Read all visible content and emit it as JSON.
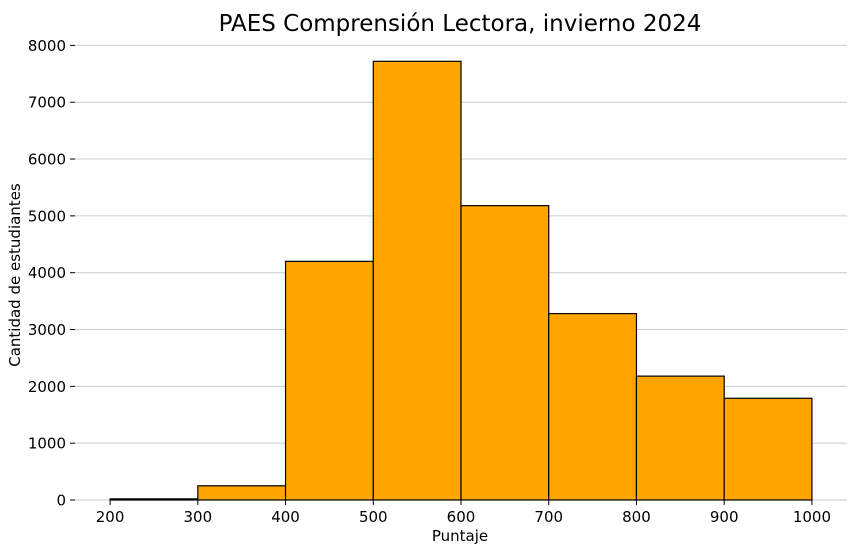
{
  "chart_data": {
    "type": "bar",
    "subtype": "histogram",
    "title": "PAES Comprensión Lectora, invierno 2024",
    "xlabel": "Puntaje",
    "ylabel": "Cantidad de estudiantes",
    "bin_edges": [
      200,
      300,
      400,
      500,
      600,
      700,
      800,
      900,
      1000
    ],
    "counts": [
      20,
      250,
      4200,
      7720,
      5180,
      3280,
      2180,
      1790
    ],
    "xticks": [
      200,
      300,
      400,
      500,
      600,
      700,
      800,
      900,
      1000
    ],
    "yticks": [
      0,
      1000,
      2000,
      3000,
      4000,
      5000,
      6000,
      7000,
      8000
    ],
    "xlim": [
      160,
      1040
    ],
    "ylim": [
      0,
      8100
    ],
    "grid": "horizontal-only",
    "legend": "none",
    "bar_color": "#FFA500",
    "bar_edge_color": "#000000",
    "grid_color": "#cbcbcb",
    "tick_color": "#000000",
    "background_color": "#ffffff"
  }
}
